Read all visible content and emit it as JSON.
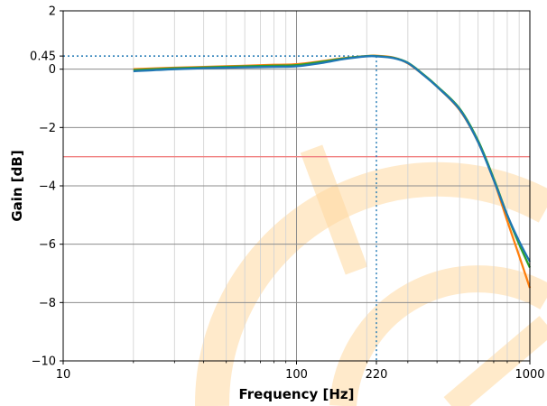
{
  "chart_data": {
    "type": "line",
    "title": "",
    "xlabel": "Frequency [Hz]",
    "ylabel": "Gain [dB]",
    "xscale": "log",
    "xlim": [
      10,
      1000
    ],
    "ylim": [
      -10,
      2
    ],
    "grid": true,
    "x_ticks": [
      {
        "value": 10,
        "label": "10"
      },
      {
        "value": 100,
        "label": "100"
      },
      {
        "value": 220,
        "label": "220"
      },
      {
        "value": 1000,
        "label": "1000"
      }
    ],
    "y_ticks": [
      {
        "value": 2,
        "label": "2"
      },
      {
        "value": 0.45,
        "label": "0.45"
      },
      {
        "value": 0,
        "label": "0"
      },
      {
        "value": -2,
        "label": "−2"
      },
      {
        "value": -4,
        "label": "−4"
      },
      {
        "value": -6,
        "label": "−6"
      },
      {
        "value": -8,
        "label": "−8"
      },
      {
        "value": -10,
        "label": "−10"
      }
    ],
    "reference_lines": [
      {
        "orientation": "horizontal",
        "value": -3,
        "color": "#f08080",
        "style": "solid"
      },
      {
        "orientation": "horizontal",
        "value": 0.45,
        "xmax": 220,
        "color": "#1f77b4",
        "style": "dotted"
      },
      {
        "orientation": "vertical",
        "value": 220,
        "ymax": 0.45,
        "color": "#1f77b4",
        "style": "dotted"
      }
    ],
    "series": [
      {
        "color": "#ff7f0e",
        "x": [
          20,
          30,
          50,
          80,
          100,
          130,
          160,
          200,
          220,
          260,
          300,
          350,
          400,
          500,
          600,
          700,
          800,
          900,
          1000
        ],
        "y": [
          0.0,
          0.05,
          0.1,
          0.15,
          0.17,
          0.28,
          0.38,
          0.45,
          0.46,
          0.4,
          0.2,
          -0.2,
          -0.6,
          -1.4,
          -2.5,
          -3.8,
          -5.2,
          -6.4,
          -7.5
        ]
      },
      {
        "color": "#2ca02c",
        "x": [
          20,
          30,
          50,
          80,
          100,
          130,
          160,
          200,
          220,
          260,
          300,
          350,
          400,
          500,
          600,
          700,
          800,
          900,
          1000
        ],
        "y": [
          -0.03,
          0.03,
          0.08,
          0.12,
          0.14,
          0.26,
          0.37,
          0.45,
          0.45,
          0.39,
          0.22,
          -0.18,
          -0.58,
          -1.35,
          -2.45,
          -3.75,
          -5.0,
          -6.0,
          -6.8
        ]
      },
      {
        "color": "#1f77b4",
        "x": [
          20,
          30,
          50,
          80,
          100,
          130,
          160,
          200,
          220,
          260,
          300,
          350,
          400,
          500,
          600,
          700,
          800,
          900,
          1000
        ],
        "y": [
          -0.07,
          0.0,
          0.05,
          0.08,
          0.1,
          0.22,
          0.35,
          0.44,
          0.44,
          0.38,
          0.21,
          -0.2,
          -0.6,
          -1.38,
          -2.5,
          -3.8,
          -5.0,
          -5.9,
          -6.6
        ]
      }
    ],
    "watermark_color": "#ffd9a0"
  }
}
